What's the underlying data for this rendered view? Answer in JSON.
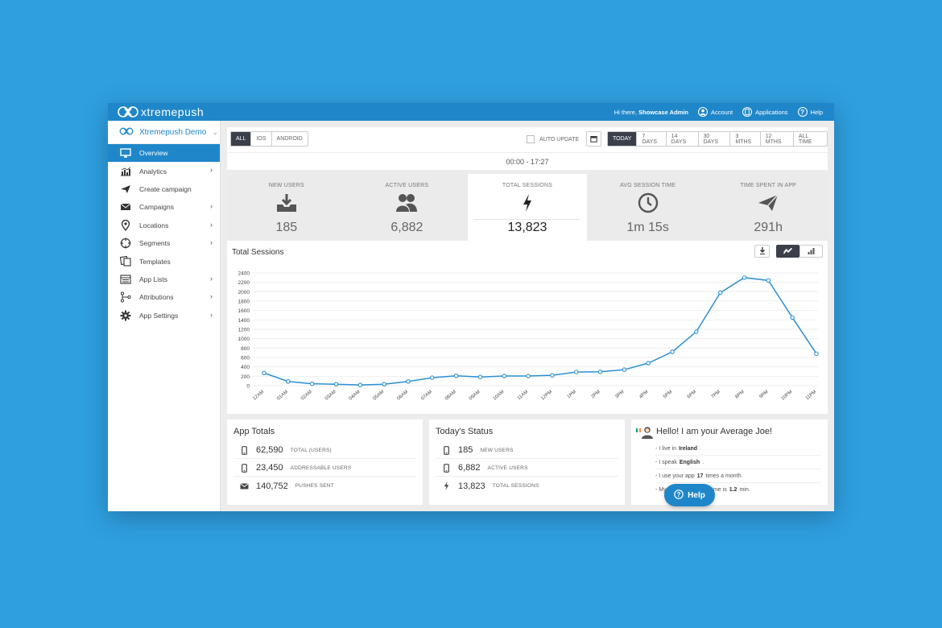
{
  "brand": {
    "name": "xtremepush"
  },
  "topnav": {
    "greeting": "Hi there,",
    "user": "Showcase Admin",
    "account": "Account",
    "applications": "Applications",
    "help": "Help"
  },
  "sidebar": {
    "app_name": "Xtremepush Demo",
    "items": [
      {
        "label": "Overview",
        "icon": "monitor-icon",
        "active": true
      },
      {
        "label": "Analytics",
        "icon": "bar-chart-icon"
      },
      {
        "label": "Create campaign",
        "icon": "paper-plane-icon"
      },
      {
        "label": "Campaigns",
        "icon": "envelope-icon"
      },
      {
        "label": "Locations",
        "icon": "map-pin-icon"
      },
      {
        "label": "Segments",
        "icon": "crosshair-icon"
      },
      {
        "label": "Templates",
        "icon": "templates-icon"
      },
      {
        "label": "App Lists",
        "icon": "list-icon"
      },
      {
        "label": "Attributions",
        "icon": "attribution-icon"
      },
      {
        "label": "App Settings",
        "icon": "gear-icon"
      }
    ]
  },
  "filters": {
    "platforms": [
      "ALL",
      "IOS",
      "ANDROID"
    ],
    "auto_update": "AUTO UPDATE",
    "ranges": [
      "TODAY",
      "7 DAYS",
      "14 DAYS",
      "30 DAYS",
      "3 MTHS",
      "12 MTHS",
      "ALL TIME"
    ],
    "time_range": "00:00 - 17:27"
  },
  "stats": [
    {
      "label": "NEW USERS",
      "value": "185",
      "icon": "download-icon"
    },
    {
      "label": "ACTIVE USERS",
      "value": "6,882",
      "icon": "users-icon"
    },
    {
      "label": "TOTAL SESSIONS",
      "value": "13,823",
      "icon": "lightning-icon",
      "active": true
    },
    {
      "label": "AVG SESSION TIME",
      "value": "1m 15s",
      "icon": "clock-icon"
    },
    {
      "label": "TIME SPENT IN APP",
      "value": "291h",
      "icon": "paper-plane-icon"
    }
  ],
  "chart_data": {
    "type": "line",
    "title": "Total Sessions",
    "categories": [
      "12AM",
      "01AM",
      "02AM",
      "03AM",
      "04AM",
      "05AM",
      "06AM",
      "07AM",
      "08AM",
      "09AM",
      "10AM",
      "11AM",
      "12PM",
      "1PM",
      "2PM",
      "3PM",
      "4PM",
      "5PM",
      "6PM",
      "7PM",
      "8PM",
      "9PM",
      "10PM",
      "11PM"
    ],
    "series": [
      {
        "values": [
          270,
          90,
          40,
          30,
          15,
          30,
          90,
          170,
          210,
          185,
          205,
          205,
          220,
          290,
          295,
          340,
          480,
          720,
          1150,
          1980,
          2300,
          2240,
          1450,
          680
        ]
      }
    ],
    "ylim": [
      0,
      2400
    ],
    "yticks": [
      0,
      200,
      400,
      600,
      800,
      1000,
      1200,
      1400,
      1600,
      1800,
      2000,
      2200,
      2400
    ],
    "grid": true,
    "color": "#2b8fd4"
  },
  "app_totals": {
    "title": "App Totals",
    "rows": [
      {
        "value": "62,590",
        "label": "TOTAL (USERS)",
        "icon": "phone-icon"
      },
      {
        "value": "23,450",
        "label": "ADDRESSABLE USERS",
        "icon": "phone-icon"
      },
      {
        "value": "140,752",
        "label": "PUSHES SENT",
        "icon": "envelope-icon"
      }
    ]
  },
  "todays_status": {
    "title": "Today's Status",
    "rows": [
      {
        "value": "185",
        "label": "NEW USERS",
        "icon": "phone-icon"
      },
      {
        "value": "6,882",
        "label": "ACTIVE USERS",
        "icon": "phone-icon"
      },
      {
        "value": "13,823",
        "label": "TOTAL SESSIONS",
        "icon": "lightning-icon"
      }
    ]
  },
  "average_joe": {
    "title": "Hello! I am your Average Joe!",
    "lines": [
      {
        "pre": "- I live in",
        "bold": "Ireland",
        "post": "."
      },
      {
        "pre": "- I speak",
        "bold": "English",
        "post": "."
      },
      {
        "pre": "- I use your app",
        "bold": "17",
        "post": "times a month."
      },
      {
        "pre": "- My average session time is",
        "bold": "1.2",
        "post": "min."
      }
    ]
  },
  "help_button": {
    "label": "Help"
  }
}
